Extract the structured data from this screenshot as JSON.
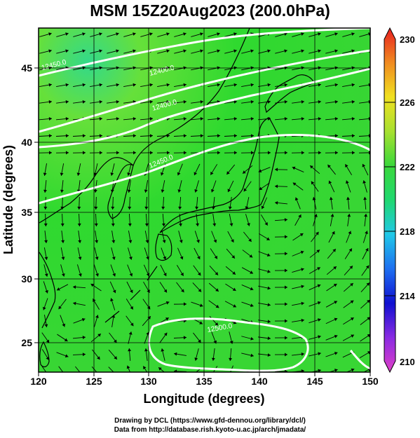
{
  "title": "MSM 15Z20Aug2023 (200.0hPa)",
  "xlabel": "Longitude (degrees)",
  "ylabel": "Latitude  (degrees)",
  "x_ticks": [
    "120",
    "125",
    "130",
    "135",
    "140",
    "145",
    "150"
  ],
  "y_ticks": [
    "25",
    "30",
    "35",
    "40",
    "45"
  ],
  "colorbar": {
    "ticks": [
      "210",
      "214",
      "218",
      "222",
      "226",
      "230"
    ],
    "range": [
      210,
      230
    ]
  },
  "contour_labels": [
    "12450.0",
    "12400.0",
    "12400.0",
    "12450.0",
    "12500.0"
  ],
  "credits": [
    "Drawing by DCL (https://www.gfd-dennou.org/library/dcl/)",
    "Data from http://database.rish.kyoto-u.ac.jp/arch/jmadata/"
  ],
  "colors": {
    "field": "#2fd92f",
    "field_light": "#66e03a",
    "field_cyan": "#33d98a",
    "contour": "#ffffff",
    "streamline": "#000000"
  }
}
